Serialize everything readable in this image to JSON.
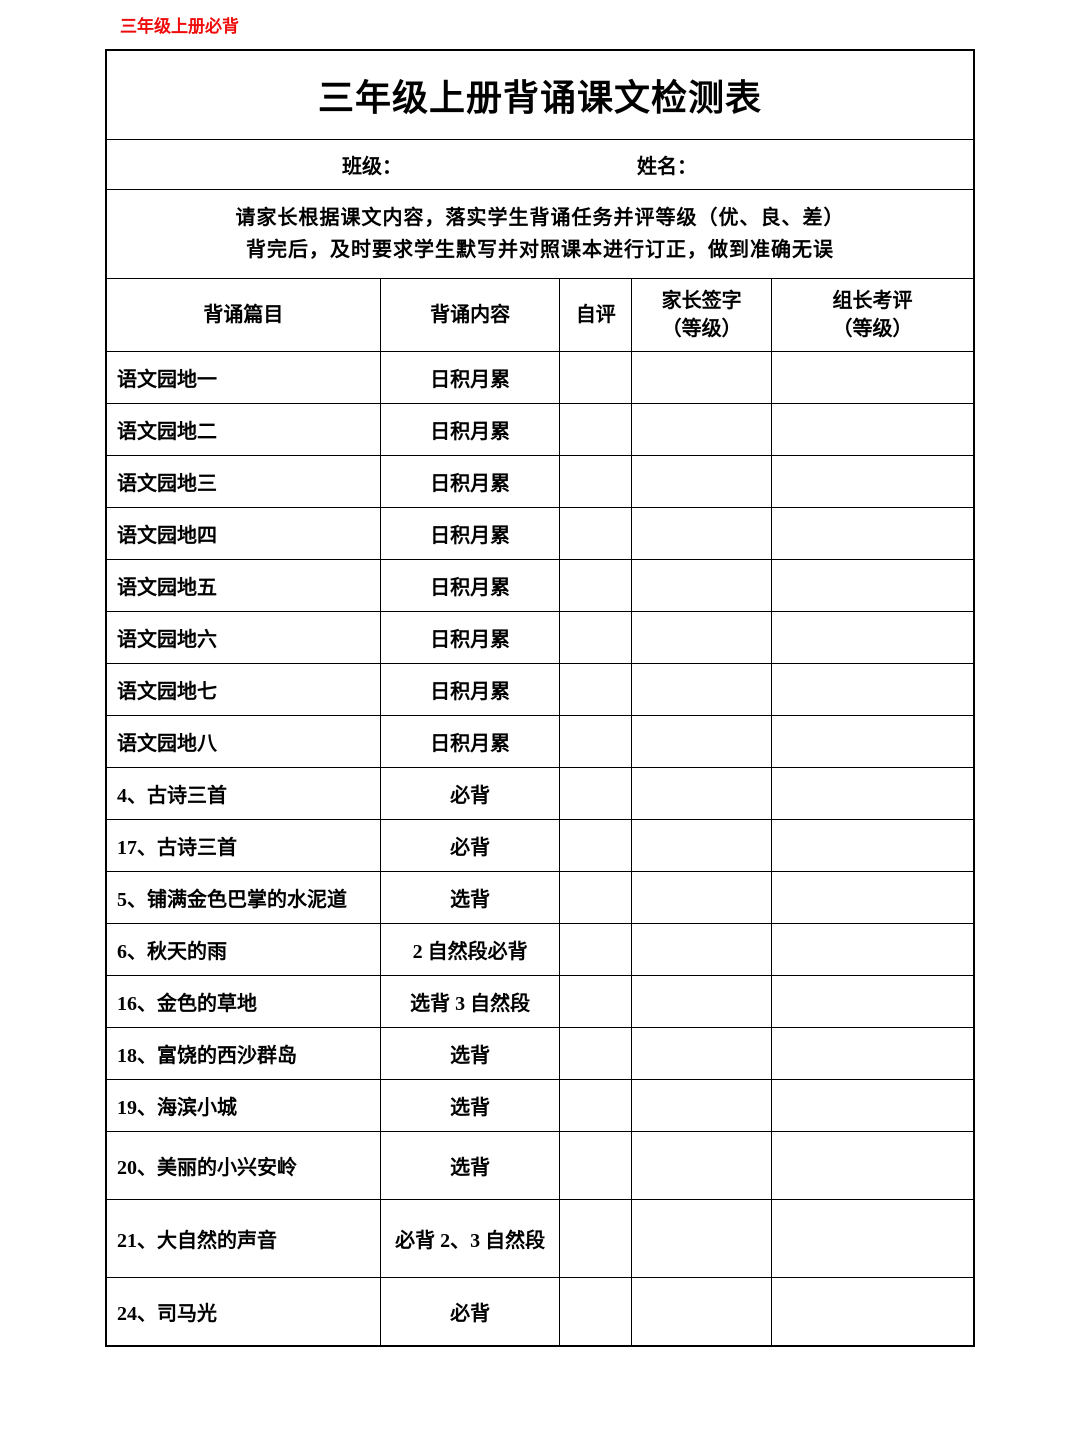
{
  "header": "三年级上册必背",
  "title": "三年级上册背诵课文检测表",
  "info": {
    "class_label": "班级：",
    "name_label": "姓名："
  },
  "instructions": {
    "line1": "请家长根据课文内容，落实学生背诵任务并评等级（优、良、差）",
    "line2": "背完后，及时要求学生默写并对照课本进行订正，做到准确无误"
  },
  "columns": {
    "c1": "背诵篇目",
    "c2": "背诵内容",
    "c3": "自评",
    "c4_l1": "家长签字",
    "c4_l2": "（等级）",
    "c5_l1": "组长考评",
    "c5_l2": "（等级）"
  },
  "rows": [
    {
      "title": "语文园地一",
      "content": "日积月累"
    },
    {
      "title": "语文园地二",
      "content": "日积月累"
    },
    {
      "title": "语文园地三",
      "content": "日积月累"
    },
    {
      "title": "语文园地四",
      "content": "日积月累"
    },
    {
      "title": "语文园地五",
      "content": "日积月累"
    },
    {
      "title": "语文园地六",
      "content": "日积月累"
    },
    {
      "title": "语文园地七",
      "content": "日积月累"
    },
    {
      "title": "语文园地八",
      "content": "日积月累"
    },
    {
      "title": "4、古诗三首",
      "content": "必背"
    },
    {
      "title": "17、古诗三首",
      "content": "必背"
    },
    {
      "title": "5、铺满金色巴掌的水泥道",
      "content": "选背"
    },
    {
      "title": "6、秋天的雨",
      "content": "2 自然段必背"
    },
    {
      "title": "16、金色的草地",
      "content": "选背 3 自然段"
    },
    {
      "title": "18、富饶的西沙群岛",
      "content": "选背"
    },
    {
      "title": "19、海滨小城",
      "content": "选背"
    },
    {
      "title": "20、美丽的小兴安岭",
      "content": "选背",
      "tall": true
    },
    {
      "title": "21、大自然的声音",
      "content": "必背 2、3 自然段",
      "taller": true
    },
    {
      "title": "24、司马光",
      "content": "必背",
      "tall": true
    }
  ],
  "colors": {
    "header_color": "#ee0b0a",
    "border_color": "#000000",
    "background": "#ffffff",
    "text_color": "#000000"
  }
}
